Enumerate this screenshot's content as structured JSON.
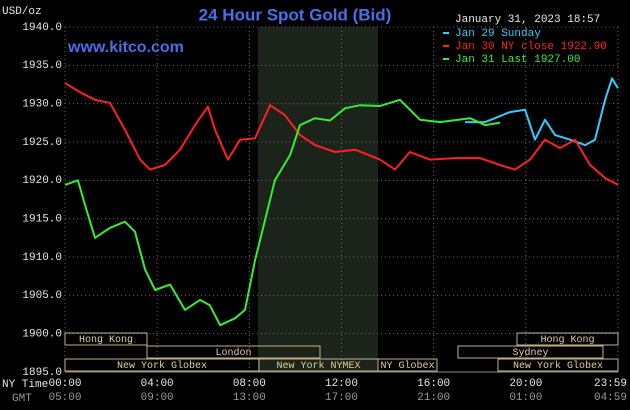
{
  "chart_data": {
    "type": "line",
    "title": "24 Hour Spot Gold (Bid)",
    "y_unit": "USD/oz",
    "timestamp": "January 31, 2023 18:57",
    "watermark": "www.kitco.com",
    "x_axis_label": "NY Time",
    "x2_axis_label": "GMT",
    "xlim": [
      0,
      24
    ],
    "xticks": [
      {
        "value": 0,
        "label": "00:00"
      },
      {
        "value": 4,
        "label": "04:00"
      },
      {
        "value": 8,
        "label": "08:00"
      },
      {
        "value": 12,
        "label": "12:00"
      },
      {
        "value": 16,
        "label": "16:00"
      },
      {
        "value": 20,
        "label": "20:00"
      },
      {
        "value": 24,
        "label": "23:59"
      }
    ],
    "x2ticks": [
      "05:00",
      "09:00",
      "13:00",
      "17:00",
      "21:00",
      "01:00",
      "04:59"
    ],
    "ylim": [
      1895,
      1940
    ],
    "yticks": [
      {
        "value": 1895,
        "label": "1895.0"
      },
      {
        "value": 1900,
        "label": "1900.0"
      },
      {
        "value": 1905,
        "label": "1905.0"
      },
      {
        "value": 1910,
        "label": "1910.0"
      },
      {
        "value": 1915,
        "label": "1915.0"
      },
      {
        "value": 1920,
        "label": "1920.0"
      },
      {
        "value": 1925,
        "label": "1925.0"
      },
      {
        "value": 1930,
        "label": "1930.0"
      },
      {
        "value": 1935,
        "label": "1935.0"
      },
      {
        "value": 1940,
        "label": "1940.0"
      }
    ],
    "grid": true,
    "sessions": [
      "Hong Kong",
      "London",
      "New York Globex",
      "New York NYMEX",
      "NY Globex",
      "Hong Kong",
      "Sydney",
      "New York Globex"
    ],
    "series": [
      {
        "name": "Jan 29 Sunday",
        "color": "#33ccff",
        "x": [
          17.36,
          18.23,
          18.66,
          19.31,
          19.97,
          20.4,
          20.83,
          21.27,
          21.92,
          22.57,
          23.0,
          23.44,
          23.74,
          24
        ],
        "values": [
          1927.6,
          1927.6,
          1928.1,
          1928.9,
          1929.2,
          1925.3,
          1927.9,
          1925.9,
          1925.3,
          1924.6,
          1925.3,
          1930.5,
          1933.3,
          1932.0
        ]
      },
      {
        "name": "Jan 30 NY close 1922.90",
        "color": "#ff2020",
        "x": [
          0,
          0.65,
          1.3,
          1.95,
          2.6,
          3.26,
          3.69,
          4.34,
          4.99,
          5.64,
          6.2,
          6.51,
          7.07,
          7.6,
          8.25,
          8.9,
          9.55,
          10.2,
          10.85,
          11.72,
          12.59,
          13.67,
          14.32,
          14.97,
          15.84,
          16.93,
          18.01,
          18.88,
          19.53,
          20.18,
          20.83,
          21.48,
          22.14,
          22.79,
          23.44,
          24
        ],
        "values": [
          1932.7,
          1931.5,
          1930.5,
          1930.1,
          1926.6,
          1922.7,
          1921.4,
          1922.0,
          1924.0,
          1927.2,
          1929.6,
          1926.6,
          1922.7,
          1925.3,
          1925.5,
          1929.8,
          1928.5,
          1925.9,
          1924.6,
          1923.7,
          1924.0,
          1922.7,
          1921.4,
          1923.7,
          1922.7,
          1922.9,
          1922.9,
          1922.0,
          1921.4,
          1922.7,
          1925.3,
          1924.2,
          1925.3,
          1922.0,
          1920.3,
          1919.4
        ]
      },
      {
        "name": "Jan 31 Last 1927.00",
        "color": "#33ee33",
        "x": [
          0,
          0.56,
          0.87,
          1.3,
          1.95,
          2.6,
          3.04,
          3.47,
          3.91,
          4.56,
          5.21,
          5.86,
          6.29,
          6.73,
          7.38,
          7.81,
          8.25,
          8.68,
          9.11,
          9.77,
          10.2,
          10.85,
          11.5,
          12.15,
          12.8,
          13.67,
          14.54,
          15.41,
          16.28,
          17.58,
          18.23,
          18.88
        ],
        "values": [
          1919.4,
          1920.0,
          1916.8,
          1912.5,
          1913.8,
          1914.6,
          1913.3,
          1908.4,
          1905.7,
          1906.4,
          1903.1,
          1904.4,
          1903.7,
          1901.1,
          1902.0,
          1903.1,
          1909.6,
          1914.8,
          1920.0,
          1923.3,
          1927.2,
          1928.1,
          1927.8,
          1929.4,
          1929.8,
          1929.7,
          1930.5,
          1927.9,
          1927.6,
          1928.1,
          1927.2,
          1927.5
        ]
      }
    ]
  }
}
